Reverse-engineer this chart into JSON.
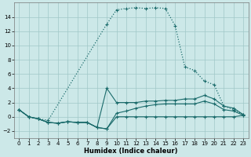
{
  "xlabel": "Humidex (Indice chaleur)",
  "bg_color": "#cce8e8",
  "grid_color": "#a0c8c8",
  "line_color": "#1a6b6b",
  "xlim": [
    -0.5,
    23.5
  ],
  "ylim": [
    -3,
    16
  ],
  "xticks": [
    0,
    1,
    2,
    3,
    4,
    5,
    6,
    7,
    8,
    9,
    10,
    11,
    12,
    13,
    14,
    15,
    16,
    17,
    18,
    19,
    20,
    21,
    22,
    23
  ],
  "yticks": [
    -2,
    0,
    2,
    4,
    6,
    8,
    10,
    12,
    14
  ],
  "curve_main_x": [
    0,
    1,
    2,
    3,
    9,
    10,
    11,
    12,
    13,
    14,
    15,
    16,
    17,
    18,
    19,
    20,
    21,
    22,
    23
  ],
  "curve_main_y": [
    1,
    0,
    -0.3,
    -0.5,
    13,
    15,
    15.2,
    15.3,
    15.2,
    15.3,
    15.2,
    12.8,
    7,
    6.5,
    5,
    4.5,
    1.5,
    1,
    0.3
  ],
  "curve1_x": [
    0,
    1,
    2,
    3,
    4,
    5,
    6,
    7,
    8,
    9,
    10,
    11,
    12,
    13,
    14,
    15,
    16,
    17,
    18,
    19,
    20,
    21,
    22,
    23
  ],
  "curve1_y": [
    1,
    0,
    -0.3,
    -0.8,
    -0.9,
    -0.7,
    -0.8,
    -0.8,
    -1.5,
    4,
    2.0,
    2.0,
    2.0,
    2.2,
    2.2,
    2.3,
    2.3,
    2.5,
    2.5,
    3.0,
    2.5,
    1.5,
    1.2,
    0.3
  ],
  "curve2_x": [
    0,
    1,
    2,
    3,
    4,
    5,
    6,
    7,
    8,
    9,
    10,
    11,
    12,
    13,
    14,
    15,
    16,
    17,
    18,
    19,
    20,
    21,
    22,
    23
  ],
  "curve2_y": [
    1,
    0,
    -0.3,
    -0.8,
    -0.9,
    -0.7,
    -0.8,
    -0.8,
    -1.5,
    -1.7,
    0.5,
    0.8,
    1.2,
    1.5,
    1.7,
    1.8,
    1.8,
    1.8,
    1.8,
    2.2,
    1.8,
    1.0,
    0.8,
    0.2
  ],
  "curve3_x": [
    0,
    1,
    2,
    3,
    4,
    5,
    6,
    7,
    8,
    9,
    10,
    11,
    12,
    13,
    14,
    15,
    16,
    17,
    18,
    19,
    20,
    21,
    22,
    23
  ],
  "curve3_y": [
    1,
    0,
    -0.3,
    -0.8,
    -0.9,
    -0.7,
    -0.8,
    -0.8,
    -1.5,
    -1.7,
    0,
    0,
    0,
    0,
    0,
    0,
    0,
    0,
    0,
    0,
    0,
    0,
    0,
    0.2
  ]
}
